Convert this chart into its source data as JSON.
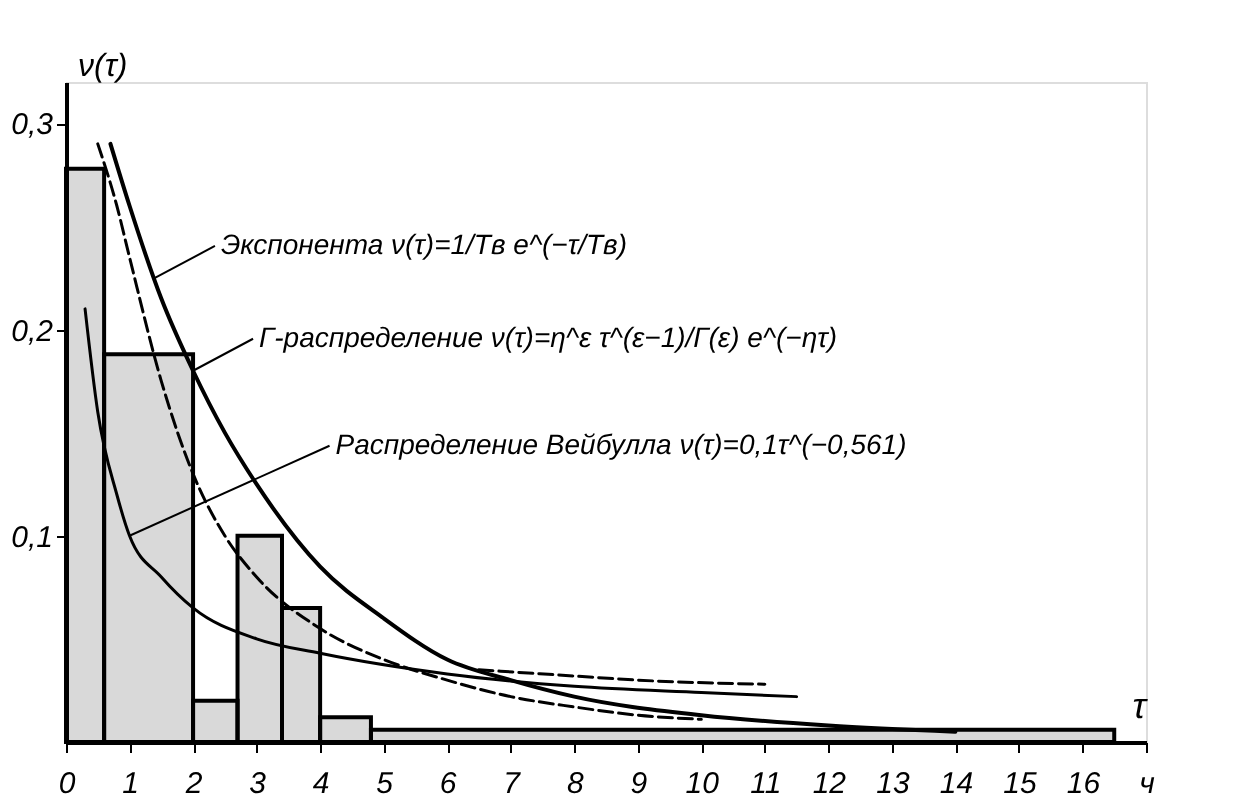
{
  "chart_data": {
    "type": "histogram",
    "ylabel": "ν(τ)",
    "xlabel": "τ",
    "bins": [
      0,
      0.6,
      2,
      2.7,
      3.4,
      4,
      4.8,
      16.5
    ],
    "values": [
      0.278,
      0.188,
      0.02,
      0.1,
      0.065,
      0.012,
      0.006
    ],
    "color": "#000000",
    "series": [
      {
        "type": "line",
        "color": "#000000",
        "line_style": "solid",
        "x": [
          0.7,
          1,
          1.5,
          2,
          2.5,
          3,
          4,
          5,
          6,
          7,
          8,
          10,
          12,
          14
        ],
        "values": [
          0.29,
          0.26,
          0.215,
          0.18,
          0.15,
          0.125,
          0.085,
          0.06,
          0.04,
          0.03,
          0.022,
          0.013,
          0.008,
          0.005
        ]
      },
      {
        "type": "line",
        "color": "#000000",
        "line_style": "dashed",
        "x": [
          0.5,
          0.8,
          1,
          1.5,
          2,
          2.5,
          3,
          4,
          5,
          6,
          7,
          8,
          9,
          10
        ],
        "values": [
          0.29,
          0.26,
          0.235,
          0.175,
          0.13,
          0.1,
          0.08,
          0.055,
          0.04,
          0.03,
          0.022,
          0.017,
          0.013,
          0.011
        ]
      },
      {
        "type": "line",
        "color": "#000000",
        "line_style": "solid",
        "x": [
          0.3,
          0.5,
          0.8,
          1,
          1.5,
          2,
          3,
          4,
          6,
          8,
          10,
          11.5
        ],
        "values": [
          0.21,
          0.16,
          0.12,
          0.1,
          0.08,
          0.065,
          0.05,
          0.043,
          0.033,
          0.027,
          0.024,
          0.022
        ]
      },
      {
        "type": "line",
        "color": "#000000",
        "line_style": "dashed",
        "x": [
          6.5,
          8,
          9,
          11
        ],
        "values": [
          0.035,
          0.032,
          0.03,
          0.028
        ]
      }
    ],
    "annotations": [
      {
        "text": "Экспонента ν(τ)=1/Tв e^(−τ/Tв)",
        "x": 1.4,
        "y": 0.225
      },
      {
        "text": "Г-распределение ν(τ)=η^ε τ^(ε−1)/Г(ε) e^(−ητ)",
        "x": 2,
        "y": 0.18
      },
      {
        "text": "Распределение Вейбулла ν(τ)=0,1τ^(−0,561)",
        "x": 1,
        "y": 0.1
      }
    ],
    "xlim": [
      0,
      17
    ],
    "ylim": [
      0,
      0.32
    ],
    "xticks": [
      {
        "value": 0,
        "label": "0"
      },
      1,
      2,
      3,
      4,
      5,
      6,
      7,
      8,
      9,
      10,
      11,
      12,
      13,
      14,
      15,
      16,
      {
        "value": 17,
        "label": "ч"
      }
    ],
    "yticks": [
      {
        "value": 0.1,
        "label": "0,1"
      },
      {
        "value": 0.2,
        "label": "0,2"
      },
      {
        "value": 0.3,
        "label": "0,3"
      }
    ],
    "grid": false
  }
}
